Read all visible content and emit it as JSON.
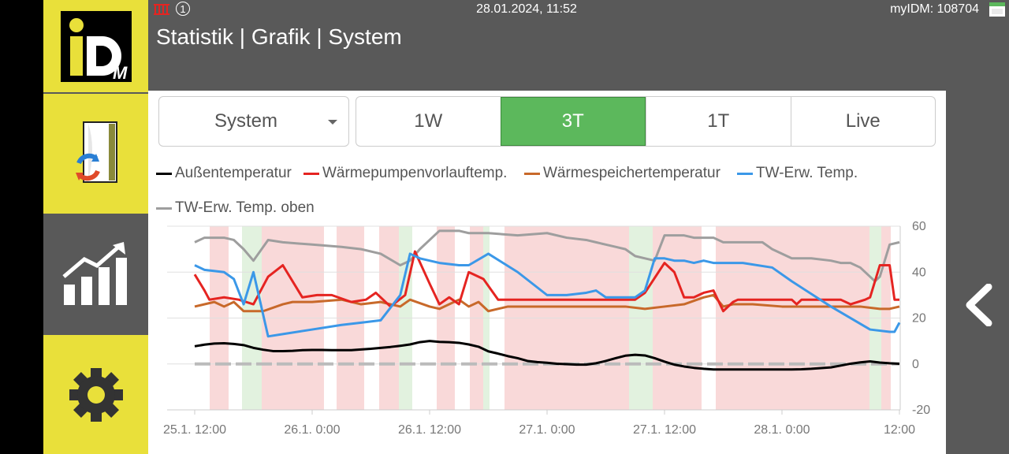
{
  "status": {
    "notification_count": "1",
    "datetime": "28.01.2024, 11:52",
    "device_id": "myIDM: 108704"
  },
  "header": {
    "title": "Statistik | Grafik | System"
  },
  "sidebar": {
    "logo_text": "iD",
    "logo_sub": "M",
    "items": [
      {
        "name": "device-view",
        "icon": "heat-pump-icon"
      },
      {
        "name": "statistics",
        "icon": "bar-chart-icon"
      },
      {
        "name": "settings",
        "icon": "gear-icon"
      }
    ]
  },
  "controls": {
    "select_value": "System",
    "range_buttons": [
      "1W",
      "3T",
      "1T",
      "Live"
    ],
    "active_range": "3T"
  },
  "colors": {
    "active_green": "#5cb85c",
    "brand_yellow": "#e9e03a",
    "panel_gray": "#595959"
  },
  "chart_data": {
    "type": "line",
    "x_tick_labels": [
      "25.1. 12:00",
      "26.1. 0:00",
      "26.1. 12:00",
      "27.1. 0:00",
      "27.1. 12:00",
      "28.1. 0:00",
      "12:00"
    ],
    "x_ticks_hours": [
      0,
      12,
      24,
      36,
      48,
      60,
      72
    ],
    "y_ticks": [
      -20,
      0,
      20,
      40,
      60
    ],
    "ylim": [
      -20,
      60
    ],
    "xlim_hours": [
      -2.8,
      72
    ],
    "grid": "horizontal",
    "legend_position": "top",
    "series": [
      {
        "name": "Außentemperatur",
        "color": "#000000",
        "x": [
          0,
          1,
          2,
          3,
          4,
          5,
          6,
          7,
          8,
          9,
          10,
          11,
          12,
          13,
          14,
          15,
          16,
          17,
          18,
          19,
          20,
          21,
          22,
          23,
          24,
          25,
          26,
          27,
          28,
          29,
          30,
          31,
          32,
          33,
          34,
          35,
          36,
          37,
          38,
          39,
          40,
          41,
          42,
          43,
          44,
          45,
          46,
          47,
          48,
          49,
          50,
          51,
          52,
          53,
          54,
          55,
          56,
          57,
          58,
          59,
          60,
          61,
          62,
          63,
          64,
          65,
          66,
          67,
          68,
          69,
          70,
          71,
          72
        ],
        "y": [
          7.7,
          8.4,
          8.9,
          9,
          8.7,
          8.2,
          7,
          6.2,
          5.6,
          5.6,
          5.7,
          6,
          6.1,
          6.1,
          6,
          6,
          6,
          6.3,
          6.6,
          7,
          7.4,
          7.9,
          8.5,
          9.5,
          10,
          9.6,
          9.5,
          9.2,
          8.5,
          7.5,
          5.5,
          4.5,
          3.4,
          2.5,
          1.3,
          0.8,
          0.5,
          0.1,
          -0.1,
          -0.3,
          -0.3,
          0.3,
          1.3,
          2.5,
          3.6,
          4,
          3.7,
          2.5,
          1,
          -0.3,
          -1.1,
          -1.7,
          -2.1,
          -2.4,
          -2.4,
          -2.4,
          -2.4,
          -2.4,
          -2.4,
          -2.4,
          -2.4,
          -2.4,
          -2.3,
          -2.1,
          -1.8,
          -1.5,
          -0.7,
          0.1,
          0.7,
          1.1,
          0.6,
          0.3,
          0.1
        ]
      },
      {
        "name": "Wärmepumpenvorlauftemp.",
        "color": "#e52421",
        "x": [
          0,
          1,
          1.5,
          3,
          4.5,
          6,
          7.5,
          9,
          11,
          12.5,
          14,
          16,
          17.5,
          18.5,
          20,
          21.5,
          22.5,
          24,
          25,
          26,
          27,
          28,
          29.5,
          31,
          33,
          35,
          36,
          38,
          40,
          42,
          44,
          45,
          46,
          48,
          49,
          50,
          51,
          52,
          53,
          54,
          55,
          55.5,
          56,
          57,
          58,
          59,
          61,
          61.5,
          62,
          64,
          65,
          66,
          67,
          68.5,
          69,
          70,
          71,
          71.5,
          72
        ],
        "y": [
          39,
          32,
          28,
          29,
          28,
          26,
          38,
          43,
          29,
          30,
          30,
          27,
          28,
          31,
          25,
          30,
          49,
          35,
          26,
          29,
          26,
          40,
          37,
          28,
          28,
          28,
          28,
          28,
          28,
          28,
          28,
          28,
          31,
          44,
          40,
          29,
          29,
          31,
          32,
          23,
          27,
          28,
          28,
          28,
          28,
          28,
          28,
          26,
          28,
          28,
          28,
          28,
          26,
          28,
          29,
          43,
          43,
          28,
          28
        ]
      },
      {
        "name": "Wärmespeichertemperatur",
        "color": "#c8692a",
        "x": [
          0,
          2,
          3,
          4,
          5,
          7,
          9,
          10,
          12,
          15,
          17,
          19,
          21,
          22,
          24,
          25,
          27,
          28,
          29,
          30,
          31,
          32,
          33,
          34,
          36,
          40,
          44,
          46,
          48,
          50,
          52,
          53,
          54,
          55,
          57,
          60,
          62,
          65,
          68,
          70,
          71,
          72
        ],
        "y": [
          25,
          27,
          25,
          27,
          23,
          23,
          26,
          27,
          27,
          28,
          26,
          27,
          25,
          28,
          25,
          24,
          28,
          25,
          27,
          23,
          24,
          25,
          25,
          25,
          25,
          25,
          25,
          24,
          25,
          26,
          29,
          30,
          25,
          26,
          26,
          25,
          25,
          25,
          25,
          24,
          24,
          25
        ]
      },
      {
        "name": "TW-Erw. Temp.",
        "color": "#3b98e8",
        "x": [
          0,
          1,
          3,
          4,
          5,
          6,
          7.5,
          9,
          12,
          15,
          17,
          19,
          21,
          22,
          23,
          25,
          27,
          28,
          30,
          33,
          36,
          38,
          40,
          41,
          42,
          43,
          45,
          46,
          47,
          48,
          49,
          50,
          51,
          52,
          53,
          56,
          59,
          61,
          65,
          69,
          71,
          71.5,
          72
        ],
        "y": [
          43,
          41,
          40,
          37,
          26,
          40,
          12,
          13,
          15,
          17,
          18,
          19,
          30,
          48,
          46,
          44,
          43,
          43,
          48,
          40,
          30,
          30,
          31,
          32,
          29,
          29,
          29,
          32,
          46,
          46,
          45,
          45,
          44,
          45,
          44,
          44,
          42,
          36,
          25,
          15,
          14,
          14,
          18
        ]
      },
      {
        "name": "TW-Erw. Temp. oben",
        "color": "#9e9e9e",
        "x": [
          0,
          1,
          3,
          4,
          5,
          6,
          7.5,
          9,
          12,
          15,
          17,
          19,
          21,
          22,
          23,
          25,
          27,
          28,
          30,
          33,
          36,
          38,
          40,
          41,
          42,
          43,
          44,
          45,
          46,
          47,
          48,
          49,
          50,
          51,
          52,
          53,
          54,
          56,
          58,
          59,
          61,
          63,
          65,
          66,
          67,
          68,
          69,
          69.5,
          70,
          71,
          72
        ],
        "y": [
          53,
          55,
          55,
          54,
          50,
          45,
          54,
          53,
          52,
          51,
          50,
          48,
          43,
          45,
          50,
          58,
          58,
          57,
          57,
          56,
          57,
          55,
          54,
          53,
          52,
          51,
          50,
          47,
          46,
          45,
          56,
          56,
          56,
          55,
          55,
          55,
          53,
          53,
          53,
          50,
          46,
          46,
          45,
          44,
          44,
          42,
          38,
          36,
          38,
          52,
          53
        ]
      }
    ]
  }
}
